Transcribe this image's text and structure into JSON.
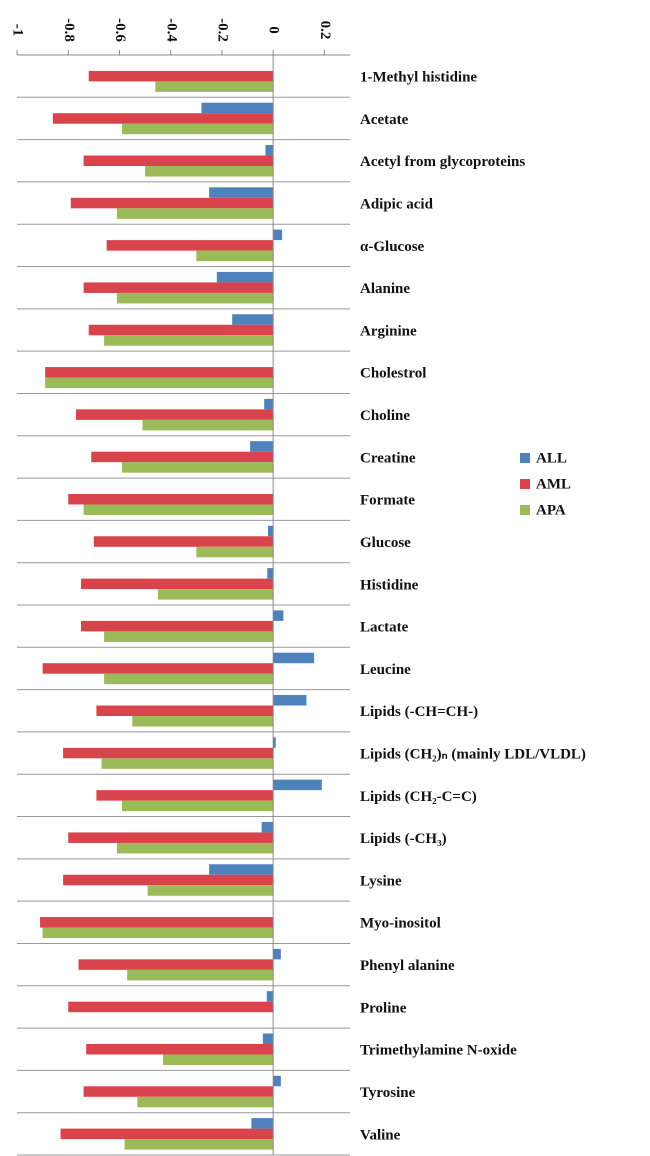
{
  "chart_data": {
    "type": "bar",
    "orientation": "horizontal",
    "categories": [
      "1-Methyl histidine",
      "Acetate",
      "Acetyl from glycoproteins",
      "Adipic acid",
      "α-Glucose",
      "Alanine",
      "Arginine",
      "Cholestrol",
      "Choline",
      "Creatine",
      "Formate",
      "Glucose",
      "Histidine",
      "Lactate",
      "Leucine",
      "Lipids (-CH=CH-)",
      "Lipids (CH₂)ₙ  (mainly LDL/VLDL)",
      "Lipids (CH₂-C=C)",
      "Lipids (-CH₃)",
      "Lysine",
      "Myo-inositol",
      "Phenyl alanine",
      "Proline",
      "Trimethylamine N-oxide",
      "Tyrosine",
      "Valine"
    ],
    "series": [
      {
        "name": "ALL",
        "color": "#4f81bd",
        "values": [
          0,
          -0.28,
          -0.03,
          -0.25,
          0.035,
          -0.22,
          -0.16,
          0,
          -0.035,
          -0.09,
          0,
          -0.02,
          -0.023,
          0.04,
          0.16,
          0.13,
          0.01,
          0.19,
          -0.045,
          -0.25,
          0,
          0.03,
          -0.025,
          -0.04,
          0.03,
          -0.085
        ]
      },
      {
        "name": "AML",
        "color": "#d9434c",
        "values": [
          -0.72,
          -0.86,
          -0.74,
          -0.79,
          -0.65,
          -0.74,
          -0.72,
          -0.89,
          -0.77,
          -0.71,
          -0.8,
          -0.7,
          -0.75,
          -0.75,
          -0.9,
          -0.69,
          -0.82,
          -0.69,
          -0.8,
          -0.82,
          -0.91,
          -0.76,
          -0.8,
          -0.73,
          -0.74,
          -0.83
        ]
      },
      {
        "name": "APA",
        "color": "#9bbb59",
        "values": [
          -0.46,
          -0.59,
          -0.5,
          -0.61,
          -0.3,
          -0.61,
          -0.66,
          -0.89,
          -0.51,
          -0.59,
          -0.74,
          -0.3,
          -0.45,
          -0.66,
          -0.66,
          -0.55,
          -0.67,
          -0.59,
          -0.61,
          -0.49,
          -0.9,
          -0.57,
          0,
          -0.43,
          -0.53,
          -0.58
        ]
      }
    ],
    "xlim": [
      -1,
      0.3
    ],
    "xticks": [
      -1,
      -0.8,
      -0.6,
      -0.4,
      -0.2,
      0,
      0.2
    ],
    "legend": "right"
  }
}
